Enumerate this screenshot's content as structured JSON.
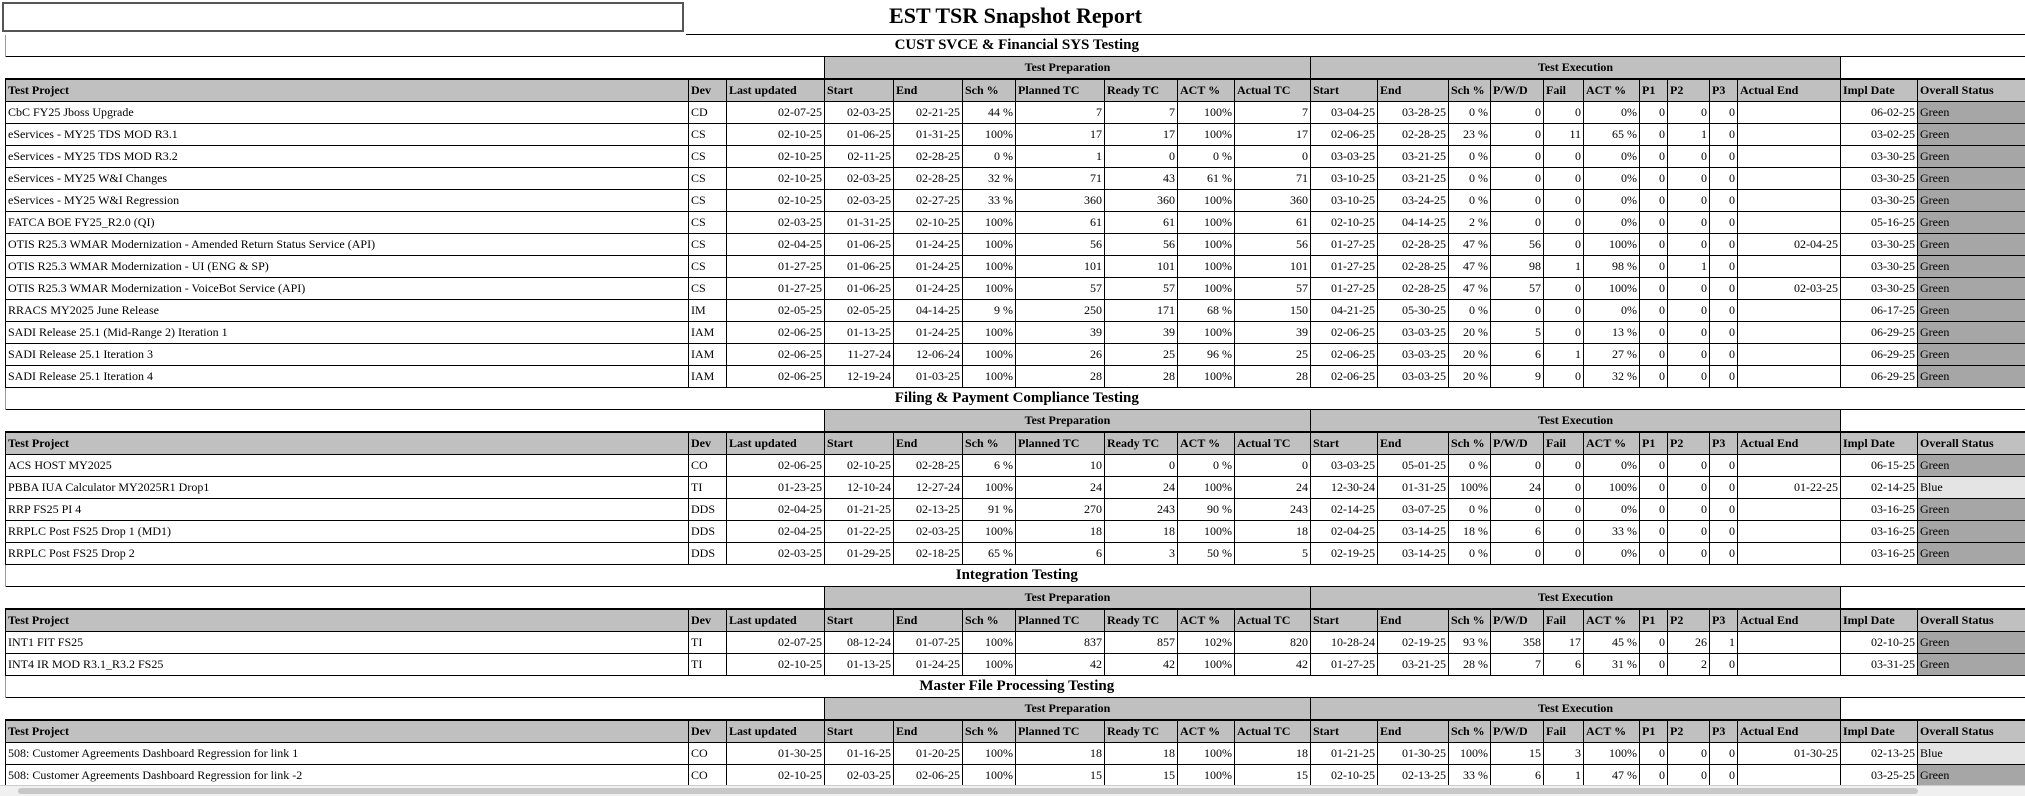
{
  "report_title": "EST TSR Snapshot Report",
  "group_headers": {
    "prep": "Test Preparation",
    "exec": "Test Execution"
  },
  "columns": [
    "Test Project",
    "Dev",
    "Last updated",
    "Start",
    "End",
    "Sch %",
    "Planned TC",
    "Ready TC",
    "ACT %",
    "Actual TC",
    "Start",
    "End",
    "Sch %",
    "P/W/D",
    "Fail",
    "ACT %",
    "P1",
    "P2",
    "P3",
    "Actual End",
    "Impl Date",
    "Overall Status"
  ],
  "status_colors": {
    "Green": "#a6a6a6",
    "Blue": "#e4e4e4"
  },
  "sections": [
    {
      "title": "CUST SVCE & Financial SYS Testing",
      "rows": [
        [
          "CbC FY25 Jboss Upgrade",
          "CD",
          "02-07-25",
          "02-03-25",
          "02-21-25",
          "44 %",
          "7",
          "7",
          "100%",
          "7",
          "03-04-25",
          "03-28-25",
          "0 %",
          "0",
          "0",
          "0%",
          "0",
          "0",
          "0",
          "",
          "06-02-25",
          "Green"
        ],
        [
          "eServices - MY25 TDS MOD R3.1",
          "CS",
          "02-10-25",
          "01-06-25",
          "01-31-25",
          "100%",
          "17",
          "17",
          "100%",
          "17",
          "02-06-25",
          "02-28-25",
          "23 %",
          "0",
          "11",
          "65 %",
          "0",
          "1",
          "0",
          "",
          "03-02-25",
          "Green"
        ],
        [
          "eServices - MY25 TDS MOD R3.2",
          "CS",
          "02-10-25",
          "02-11-25",
          "02-28-25",
          "0 %",
          "1",
          "0",
          "0 %",
          "0",
          "03-03-25",
          "03-21-25",
          "0 %",
          "0",
          "0",
          "0%",
          "0",
          "0",
          "0",
          "",
          "03-30-25",
          "Green"
        ],
        [
          "eServices - MY25 W&I Changes",
          "CS",
          "02-10-25",
          "02-03-25",
          "02-28-25",
          "32 %",
          "71",
          "43",
          "61 %",
          "71",
          "03-10-25",
          "03-21-25",
          "0 %",
          "0",
          "0",
          "0%",
          "0",
          "0",
          "0",
          "",
          "03-30-25",
          "Green"
        ],
        [
          "eServices - MY25 W&I Regression",
          "CS",
          "02-10-25",
          "02-03-25",
          "02-27-25",
          "33 %",
          "360",
          "360",
          "100%",
          "360",
          "03-10-25",
          "03-24-25",
          "0 %",
          "0",
          "0",
          "0%",
          "0",
          "0",
          "0",
          "",
          "03-30-25",
          "Green"
        ],
        [
          "FATCA BOE FY25_R2.0 (QI)",
          "CS",
          "02-03-25",
          "01-31-25",
          "02-10-25",
          "100%",
          "61",
          "61",
          "100%",
          "61",
          "02-10-25",
          "04-14-25",
          "2 %",
          "0",
          "0",
          "0%",
          "0",
          "0",
          "0",
          "",
          "05-16-25",
          "Green"
        ],
        [
          "OTIS R25.3 WMAR Modernization - Amended Return Status Service (API)",
          "CS",
          "02-04-25",
          "01-06-25",
          "01-24-25",
          "100%",
          "56",
          "56",
          "100%",
          "56",
          "01-27-25",
          "02-28-25",
          "47 %",
          "56",
          "0",
          "100%",
          "0",
          "0",
          "0",
          "02-04-25",
          "03-30-25",
          "Green"
        ],
        [
          "OTIS R25.3 WMAR Modernization - UI (ENG & SP)",
          "CS",
          "01-27-25",
          "01-06-25",
          "01-24-25",
          "100%",
          "101",
          "101",
          "100%",
          "101",
          "01-27-25",
          "02-28-25",
          "47 %",
          "98",
          "1",
          "98 %",
          "0",
          "1",
          "0",
          "",
          "03-30-25",
          "Green"
        ],
        [
          "OTIS R25.3 WMAR Modernization - VoiceBot Service (API)",
          "CS",
          "01-27-25",
          "01-06-25",
          "01-24-25",
          "100%",
          "57",
          "57",
          "100%",
          "57",
          "01-27-25",
          "02-28-25",
          "47 %",
          "57",
          "0",
          "100%",
          "0",
          "0",
          "0",
          "02-03-25",
          "03-30-25",
          "Green"
        ],
        [
          "RRACS MY2025 June Release",
          "IM",
          "02-05-25",
          "02-05-25",
          "04-14-25",
          "9 %",
          "250",
          "171",
          "68 %",
          "150",
          "04-21-25",
          "05-30-25",
          "0 %",
          "0",
          "0",
          "0%",
          "0",
          "0",
          "0",
          "",
          "06-17-25",
          "Green"
        ],
        [
          "SADI Release 25.1 (Mid-Range 2) Iteration 1",
          "IAM",
          "02-06-25",
          "01-13-25",
          "01-24-25",
          "100%",
          "39",
          "39",
          "100%",
          "39",
          "02-06-25",
          "03-03-25",
          "20 %",
          "5",
          "0",
          "13 %",
          "0",
          "0",
          "0",
          "",
          "06-29-25",
          "Green"
        ],
        [
          "SADI Release 25.1 Iteration 3",
          "IAM",
          "02-06-25",
          "11-27-24",
          "12-06-24",
          "100%",
          "26",
          "25",
          "96 %",
          "25",
          "02-06-25",
          "03-03-25",
          "20 %",
          "6",
          "1",
          "27 %",
          "0",
          "0",
          "0",
          "",
          "06-29-25",
          "Green"
        ],
        [
          "SADI Release 25.1 Iteration 4",
          "IAM",
          "02-06-25",
          "12-19-24",
          "01-03-25",
          "100%",
          "28",
          "28",
          "100%",
          "28",
          "02-06-25",
          "03-03-25",
          "20 %",
          "9",
          "0",
          "32 %",
          "0",
          "0",
          "0",
          "",
          "06-29-25",
          "Green"
        ]
      ]
    },
    {
      "title": "Filing & Payment Compliance Testing",
      "rows": [
        [
          "ACS HOST MY2025",
          "CO",
          "02-06-25",
          "02-10-25",
          "02-28-25",
          "6 %",
          "10",
          "0",
          "0 %",
          "0",
          "03-03-25",
          "05-01-25",
          "0 %",
          "0",
          "0",
          "0%",
          "0",
          "0",
          "0",
          "",
          "06-15-25",
          "Green"
        ],
        [
          "PBBA IUA Calculator MY2025R1 Drop1",
          "TI",
          "01-23-25",
          "12-10-24",
          "12-27-24",
          "100%",
          "24",
          "24",
          "100%",
          "24",
          "12-30-24",
          "01-31-25",
          "100%",
          "24",
          "0",
          "100%",
          "0",
          "0",
          "0",
          "01-22-25",
          "02-14-25",
          "Blue"
        ],
        [
          "RRP FS25 PI 4",
          "DDS",
          "02-04-25",
          "01-21-25",
          "02-13-25",
          "91 %",
          "270",
          "243",
          "90 %",
          "243",
          "02-14-25",
          "03-07-25",
          "0 %",
          "0",
          "0",
          "0%",
          "0",
          "0",
          "0",
          "",
          "03-16-25",
          "Green"
        ],
        [
          "RRPLC Post FS25 Drop 1 (MD1)",
          "DDS",
          "02-04-25",
          "01-22-25",
          "02-03-25",
          "100%",
          "18",
          "18",
          "100%",
          "18",
          "02-04-25",
          "03-14-25",
          "18 %",
          "6",
          "0",
          "33 %",
          "0",
          "0",
          "0",
          "",
          "03-16-25",
          "Green"
        ],
        [
          "RRPLC Post FS25 Drop 2",
          "DDS",
          "02-03-25",
          "01-29-25",
          "02-18-25",
          "65 %",
          "6",
          "3",
          "50 %",
          "5",
          "02-19-25",
          "03-14-25",
          "0 %",
          "0",
          "0",
          "0%",
          "0",
          "0",
          "0",
          "",
          "03-16-25",
          "Green"
        ]
      ]
    },
    {
      "title": "Integration Testing",
      "rows": [
        [
          "INT1 FIT FS25",
          "TI",
          "02-07-25",
          "08-12-24",
          "01-07-25",
          "100%",
          "837",
          "857",
          "102%",
          "820",
          "10-28-24",
          "02-19-25",
          "93 %",
          "358",
          "17",
          "45 %",
          "0",
          "26",
          "1",
          "",
          "02-10-25",
          "Green"
        ],
        [
          "INT4 IR MOD R3.1_R3.2 FS25",
          "TI",
          "02-10-25",
          "01-13-25",
          "01-24-25",
          "100%",
          "42",
          "42",
          "100%",
          "42",
          "01-27-25",
          "03-21-25",
          "28 %",
          "7",
          "6",
          "31 %",
          "0",
          "2",
          "0",
          "",
          "03-31-25",
          "Green"
        ]
      ]
    },
    {
      "title": "Master File Processing Testing",
      "rows": [
        [
          "508: Customer Agreements Dashboard Regression for link 1",
          "CO",
          "01-30-25",
          "01-16-25",
          "01-20-25",
          "100%",
          "18",
          "18",
          "100%",
          "18",
          "01-21-25",
          "01-30-25",
          "100%",
          "15",
          "3",
          "100%",
          "0",
          "0",
          "0",
          "01-30-25",
          "02-13-25",
          "Blue"
        ],
        [
          "508: Customer Agreements Dashboard Regression for link -2",
          "CO",
          "02-10-25",
          "02-03-25",
          "02-06-25",
          "100%",
          "15",
          "15",
          "100%",
          "15",
          "02-10-25",
          "02-13-25",
          "33 %",
          "6",
          "1",
          "47 %",
          "0",
          "0",
          "0",
          "",
          "03-25-25",
          "Green"
        ]
      ]
    }
  ]
}
